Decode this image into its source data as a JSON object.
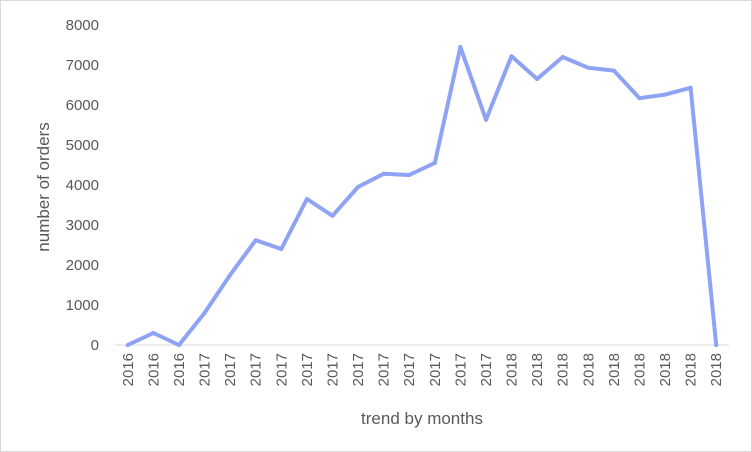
{
  "chart_data": {
    "type": "line",
    "title": "",
    "xlabel": "trend by months",
    "ylabel": "number of orders",
    "ylim": [
      0,
      8000
    ],
    "yticks": [
      0,
      1000,
      2000,
      3000,
      4000,
      5000,
      6000,
      7000,
      8000
    ],
    "grid": false,
    "legend": "none",
    "categories": [
      "2016",
      "2016",
      "2016",
      "2017",
      "2017",
      "2017",
      "2017",
      "2017",
      "2017",
      "2017",
      "2017",
      "2017",
      "2017",
      "2017",
      "2017",
      "2018",
      "2018",
      "2018",
      "2018",
      "2018",
      "2018",
      "2018",
      "2018",
      "2018"
    ],
    "series": [
      {
        "color": "#8FA3F5",
        "values": [
          0,
          300,
          0,
          800,
          1750,
          2620,
          2400,
          3650,
          3230,
          3950,
          4280,
          4250,
          4550,
          7450,
          5630,
          7220,
          6650,
          7200,
          6930,
          6860,
          6170,
          6260,
          6430,
          0
        ]
      }
    ]
  }
}
